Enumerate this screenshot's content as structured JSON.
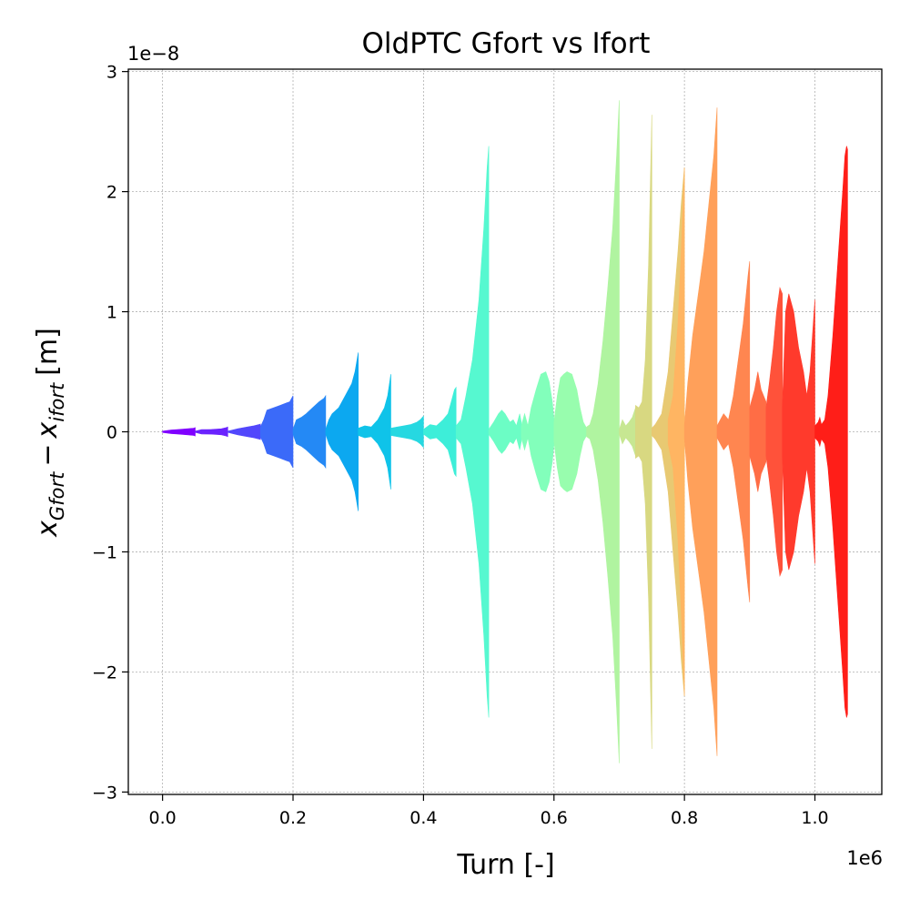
{
  "chart_data": {
    "type": "area",
    "title": "OldPTC Gfort vs Ifort",
    "xlabel": "Turn [-]",
    "ylabel": {
      "base": "x",
      "sub1": "Gfort",
      "minus": "−",
      "base2": "x",
      "sub2": "ifort",
      "unit": "[m]"
    },
    "x_offset_text": "1e6",
    "y_offset_text": "1e−8",
    "xlim": [
      -0.0525,
      1.1025
    ],
    "ylim": [
      -3.02,
      3.02
    ],
    "x_ticks": [
      0.0,
      0.2,
      0.4,
      0.6,
      0.8,
      1.0
    ],
    "x_tick_labels": [
      "0.0",
      "0.2",
      "0.4",
      "0.6",
      "0.8",
      "1.0"
    ],
    "y_ticks": [
      -3,
      -2,
      -1,
      0,
      1,
      2,
      3
    ],
    "y_tick_labels": [
      "−3",
      "−2",
      "−1",
      "0",
      "1",
      "2",
      "3"
    ],
    "grid": true,
    "series_note_units": "x in 1e6 turns, y in 1e-8 m",
    "series": [
      {
        "color": "#8000ff",
        "x_start": 0.0,
        "x_end": 0.05,
        "envelope": [
          [
            0.0,
            0.005
          ],
          [
            0.25,
            0.015
          ],
          [
            0.5,
            0.02
          ],
          [
            0.75,
            0.025
          ],
          [
            0.95,
            0.03
          ],
          [
            1.0,
            0.035
          ]
        ]
      },
      {
        "color": "#6a22fe",
        "x_start": 0.05,
        "x_end": 0.1,
        "envelope": [
          [
            0.0,
            0.005
          ],
          [
            0.2,
            0.018
          ],
          [
            0.5,
            0.02
          ],
          [
            0.8,
            0.025
          ],
          [
            0.95,
            0.035
          ],
          [
            1.0,
            0.04
          ]
        ]
      },
      {
        "color": "#5247fc",
        "x_start": 0.1,
        "x_end": 0.15,
        "envelope": [
          [
            0.0,
            0.005
          ],
          [
            0.3,
            0.025
          ],
          [
            0.6,
            0.04
          ],
          [
            0.8,
            0.05
          ],
          [
            0.95,
            0.06
          ],
          [
            1.0,
            0.065
          ]
        ]
      },
      {
        "color": "#3b6af9",
        "x_start": 0.15,
        "x_end": 0.2,
        "envelope": [
          [
            0.0,
            0.04
          ],
          [
            0.1,
            0.1
          ],
          [
            0.2,
            0.18
          ],
          [
            0.4,
            0.2
          ],
          [
            0.6,
            0.22
          ],
          [
            0.8,
            0.24
          ],
          [
            0.9,
            0.25
          ],
          [
            1.0,
            0.3
          ]
        ]
      },
      {
        "color": "#2489f5",
        "x_start": 0.2,
        "x_end": 0.25,
        "envelope": [
          [
            0.0,
            0.02
          ],
          [
            0.1,
            0.1
          ],
          [
            0.25,
            0.12
          ],
          [
            0.4,
            0.15
          ],
          [
            0.6,
            0.2
          ],
          [
            0.8,
            0.25
          ],
          [
            0.95,
            0.28
          ],
          [
            1.0,
            0.3
          ]
        ]
      },
      {
        "color": "#0ca8f0",
        "x_start": 0.25,
        "x_end": 0.3,
        "envelope": [
          [
            0.0,
            0.02
          ],
          [
            0.1,
            0.1
          ],
          [
            0.2,
            0.15
          ],
          [
            0.4,
            0.2
          ],
          [
            0.6,
            0.3
          ],
          [
            0.8,
            0.4
          ],
          [
            0.9,
            0.5
          ],
          [
            1.0,
            0.66
          ]
        ]
      },
      {
        "color": "#0fc3e9",
        "x_start": 0.3,
        "x_end": 0.35,
        "envelope": [
          [
            0.0,
            0.03
          ],
          [
            0.2,
            0.05
          ],
          [
            0.4,
            0.04
          ],
          [
            0.6,
            0.1
          ],
          [
            0.8,
            0.2
          ],
          [
            0.9,
            0.3
          ],
          [
            1.0,
            0.48
          ]
        ]
      },
      {
        "color": "#26d8e1",
        "x_start": 0.35,
        "x_end": 0.4,
        "envelope": [
          [
            0.0,
            0.03
          ],
          [
            0.2,
            0.04
          ],
          [
            0.4,
            0.05
          ],
          [
            0.6,
            0.06
          ],
          [
            0.8,
            0.08
          ],
          [
            0.9,
            0.1
          ],
          [
            1.0,
            0.13
          ]
        ]
      },
      {
        "color": "#3deed9",
        "x_start": 0.4,
        "x_end": 0.45,
        "envelope": [
          [
            0.0,
            0.02
          ],
          [
            0.2,
            0.06
          ],
          [
            0.4,
            0.05
          ],
          [
            0.6,
            0.1
          ],
          [
            0.75,
            0.15
          ],
          [
            0.85,
            0.25
          ],
          [
            0.95,
            0.35
          ],
          [
            1.0,
            0.37
          ]
        ]
      },
      {
        "color": "#56f8d0",
        "x_start": 0.45,
        "x_end": 0.5,
        "envelope": [
          [
            0.0,
            0.05
          ],
          [
            0.15,
            0.1
          ],
          [
            0.3,
            0.3
          ],
          [
            0.5,
            0.6
          ],
          [
            0.7,
            1.1
          ],
          [
            0.85,
            1.7
          ],
          [
            0.95,
            2.2
          ],
          [
            1.0,
            2.38
          ]
        ]
      },
      {
        "color": "#6cfdc5",
        "x_start": 0.5,
        "x_end": 0.55,
        "envelope": [
          [
            0.0,
            0.02
          ],
          [
            0.15,
            0.08
          ],
          [
            0.3,
            0.15
          ],
          [
            0.4,
            0.18
          ],
          [
            0.5,
            0.15
          ],
          [
            0.65,
            0.08
          ],
          [
            0.75,
            0.1
          ],
          [
            0.85,
            0.05
          ],
          [
            0.95,
            0.15
          ],
          [
            1.0,
            0.08
          ]
        ]
      },
      {
        "color": "#82ffbb",
        "x_start": 0.55,
        "x_end": 0.6,
        "envelope": [
          [
            0.0,
            0.05
          ],
          [
            0.1,
            0.15
          ],
          [
            0.2,
            0.05
          ],
          [
            0.3,
            0.2
          ],
          [
            0.45,
            0.35
          ],
          [
            0.6,
            0.48
          ],
          [
            0.75,
            0.5
          ],
          [
            0.85,
            0.42
          ],
          [
            0.95,
            0.25
          ],
          [
            1.0,
            0.1
          ]
        ]
      },
      {
        "color": "#98fdae",
        "x_start": 0.6,
        "x_end": 0.65,
        "envelope": [
          [
            0.0,
            0.08
          ],
          [
            0.1,
            0.3
          ],
          [
            0.2,
            0.45
          ],
          [
            0.3,
            0.48
          ],
          [
            0.4,
            0.5
          ],
          [
            0.55,
            0.48
          ],
          [
            0.7,
            0.35
          ],
          [
            0.8,
            0.2
          ],
          [
            0.9,
            0.08
          ],
          [
            1.0,
            0.03
          ]
        ]
      },
      {
        "color": "#b0f4a0",
        "x_start": 0.65,
        "x_end": 0.7,
        "envelope": [
          [
            0.0,
            0.04
          ],
          [
            0.1,
            0.06
          ],
          [
            0.2,
            0.15
          ],
          [
            0.35,
            0.4
          ],
          [
            0.5,
            0.75
          ],
          [
            0.65,
            1.2
          ],
          [
            0.8,
            1.7
          ],
          [
            0.92,
            2.3
          ],
          [
            1.0,
            2.76
          ]
        ]
      },
      {
        "color": "#c7e792",
        "x_start": 0.7,
        "x_end": 0.725,
        "envelope": [
          [
            0.0,
            0.02
          ],
          [
            0.2,
            0.1
          ],
          [
            0.4,
            0.05
          ],
          [
            0.6,
            0.08
          ],
          [
            0.8,
            0.12
          ],
          [
            1.0,
            0.2
          ]
        ]
      },
      {
        "color": "#d8d881",
        "x_start": 0.725,
        "x_end": 0.75,
        "envelope": [
          [
            0.0,
            0.22
          ],
          [
            0.2,
            0.2
          ],
          [
            0.4,
            0.25
          ],
          [
            0.6,
            0.6
          ],
          [
            0.8,
            1.4
          ],
          [
            0.9,
            2.0
          ],
          [
            1.0,
            2.64
          ]
        ]
      },
      {
        "color": "#e8c972",
        "x_start": 0.75,
        "x_end": 0.8,
        "envelope": [
          [
            0.0,
            0.03
          ],
          [
            0.1,
            0.06
          ],
          [
            0.3,
            0.15
          ],
          [
            0.5,
            0.5
          ],
          [
            0.65,
            1.0
          ],
          [
            0.8,
            1.5
          ],
          [
            0.9,
            1.9
          ],
          [
            1.0,
            2.2
          ]
        ]
      },
      {
        "color": "#ffb562",
        "x_start": 0.775,
        "x_end": 0.8,
        "envelope": [
          [
            0.0,
            0.1
          ],
          [
            0.3,
            0.3
          ],
          [
            0.6,
            0.9
          ],
          [
            0.8,
            1.5
          ],
          [
            1.0,
            2.2
          ]
        ]
      },
      {
        "color": "#ffa05a",
        "x_start": 0.8,
        "x_end": 0.85,
        "envelope": [
          [
            0.0,
            0.05
          ],
          [
            0.1,
            0.4
          ],
          [
            0.25,
            0.8
          ],
          [
            0.45,
            1.2
          ],
          [
            0.6,
            1.5
          ],
          [
            0.75,
            1.9
          ],
          [
            0.9,
            2.3
          ],
          [
            1.0,
            2.7
          ]
        ]
      },
      {
        "color": "#ff8650",
        "x_start": 0.85,
        "x_end": 0.9,
        "envelope": [
          [
            0.0,
            0.05
          ],
          [
            0.1,
            0.1
          ],
          [
            0.2,
            0.15
          ],
          [
            0.35,
            0.1
          ],
          [
            0.5,
            0.3
          ],
          [
            0.65,
            0.6
          ],
          [
            0.8,
            0.9
          ],
          [
            0.95,
            1.3
          ],
          [
            1.0,
            1.42
          ]
        ]
      },
      {
        "color": "#ff6d45",
        "x_start": 0.9,
        "x_end": 0.925,
        "envelope": [
          [
            0.0,
            0.2
          ],
          [
            0.3,
            0.35
          ],
          [
            0.5,
            0.5
          ],
          [
            0.7,
            0.35
          ],
          [
            0.85,
            0.3
          ],
          [
            1.0,
            0.25
          ]
        ]
      },
      {
        "color": "#ff523a",
        "x_start": 0.925,
        "x_end": 0.95,
        "envelope": [
          [
            0.0,
            0.2
          ],
          [
            0.2,
            0.4
          ],
          [
            0.45,
            0.7
          ],
          [
            0.65,
            1.0
          ],
          [
            0.85,
            1.2
          ],
          [
            1.0,
            1.15
          ]
        ]
      },
      {
        "color": "#ff3a2c",
        "x_start": 0.95,
        "x_end": 1.0,
        "envelope": [
          [
            0.0,
            0.2
          ],
          [
            0.1,
            1.0
          ],
          [
            0.2,
            1.15
          ],
          [
            0.35,
            1.0
          ],
          [
            0.5,
            0.7
          ],
          [
            0.65,
            0.5
          ],
          [
            0.75,
            0.3
          ],
          [
            0.85,
            0.5
          ],
          [
            0.95,
            0.9
          ],
          [
            1.0,
            1.1
          ]
        ]
      },
      {
        "color": "#ff1e18",
        "x_start": 1.0,
        "x_end": 1.05,
        "envelope": [
          [
            0.0,
            0.05
          ],
          [
            0.1,
            0.08
          ],
          [
            0.15,
            0.12
          ],
          [
            0.2,
            0.06
          ],
          [
            0.3,
            0.1
          ],
          [
            0.4,
            0.3
          ],
          [
            0.55,
            0.8
          ],
          [
            0.7,
            1.4
          ],
          [
            0.85,
            2.0
          ],
          [
            0.92,
            2.3
          ],
          [
            0.97,
            2.38
          ],
          [
            1.0,
            2.35
          ]
        ]
      }
    ]
  }
}
